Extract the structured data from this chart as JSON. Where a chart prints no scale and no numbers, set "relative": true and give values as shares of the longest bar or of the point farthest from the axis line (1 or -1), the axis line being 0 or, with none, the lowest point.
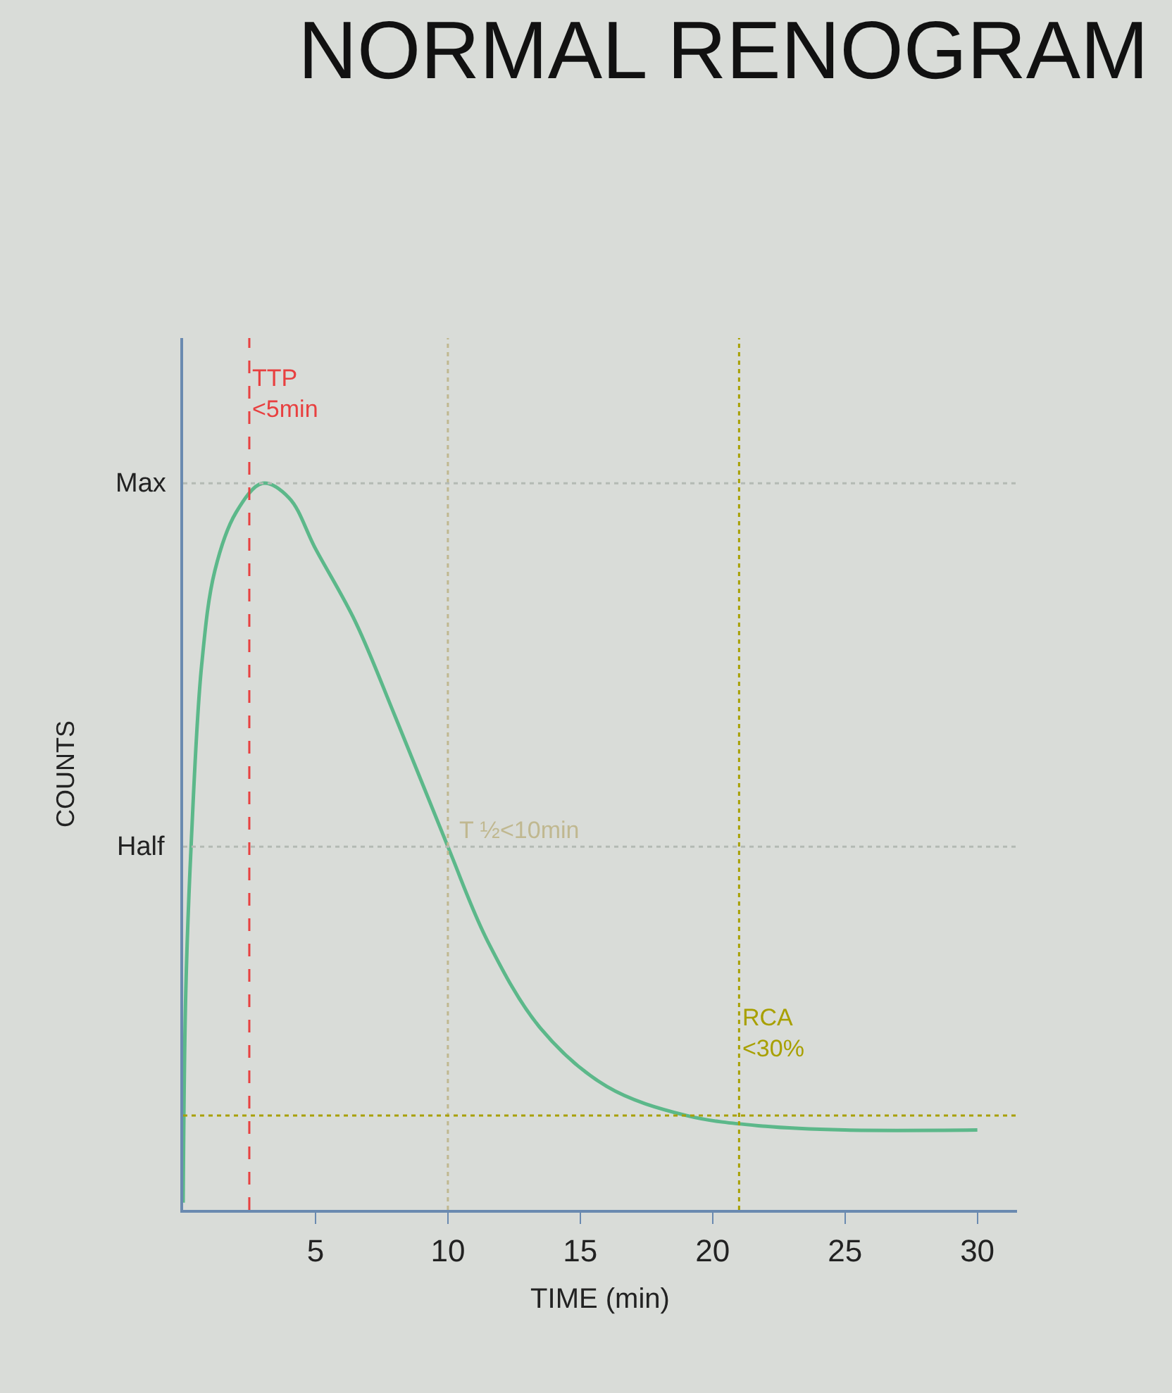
{
  "chart_data": {
    "type": "line",
    "title": "NORMAL RENOGRAM",
    "xlabel": "TIME (min)",
    "ylabel": "COUNTS",
    "x": [
      0,
      0.1,
      0.3,
      0.7,
      1.2,
      2,
      3,
      4,
      5,
      6.5,
      8,
      10,
      11.5,
      13.5,
      16,
      19,
      22,
      25,
      30
    ],
    "series": [
      {
        "color": "#5cb88a",
        "values": [
          0.01,
          0.3,
          0.5,
          0.75,
          0.88,
          0.96,
          1.0,
          0.98,
          0.91,
          0.81,
          0.68,
          0.5,
          0.37,
          0.25,
          0.17,
          0.13,
          0.115,
          0.11,
          0.11
        ]
      }
    ],
    "xlim": [
      0,
      31.5
    ],
    "xticks": [
      5,
      10,
      15,
      20,
      25,
      30
    ],
    "relative": true,
    "ref_lines": [
      {
        "axis": "x",
        "value": 2.5,
        "color": "#e84040",
        "line_style": "dashed"
      },
      {
        "axis": "x",
        "value": 10,
        "color": "#c0b890",
        "line_style": "dotted"
      },
      {
        "axis": "x",
        "value": 21,
        "color": "#a8a000",
        "line_style": "dotted"
      },
      {
        "axis": "y",
        "value": 0.13,
        "color": "#a8a000",
        "line_style": "dotted"
      },
      {
        "axis": "y",
        "value": 1,
        "label": "Max",
        "color": "#b4bab4",
        "line_style": "dotted"
      },
      {
        "axis": "y",
        "value": 0.5,
        "label": "Half",
        "color": "#b4bab4",
        "line_style": "dotted"
      }
    ],
    "annotations": [
      {
        "text": "TTP\n<5min",
        "x": 2.5,
        "y": 1.08
      },
      {
        "text": "T ½<10min",
        "x": 10.3,
        "y": 0.5
      },
      {
        "text": "RCA\n<30%",
        "x": 21,
        "y": 0.2
      }
    ],
    "grid": false,
    "marker": "none",
    "line_style": "solid"
  }
}
